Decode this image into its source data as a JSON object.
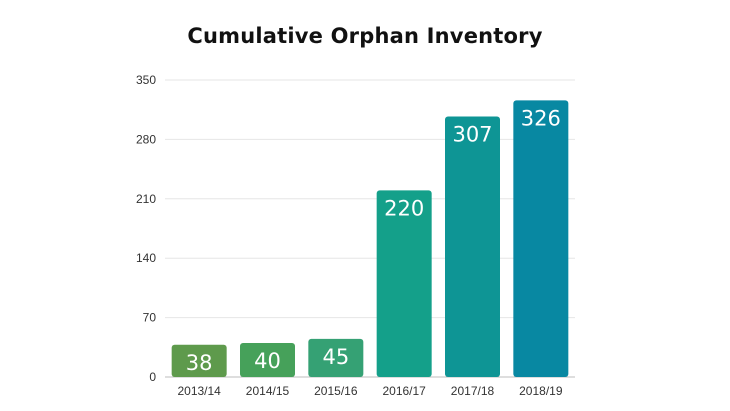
{
  "chart_data": {
    "type": "bar",
    "title": "Cumulative Orphan Inventory",
    "xlabel": "",
    "ylabel": "",
    "categories": [
      "2013/14",
      "2014/15",
      "2015/16",
      "2016/17",
      "2017/18",
      "2018/19"
    ],
    "values": [
      38,
      40,
      45,
      220,
      307,
      326
    ],
    "data_labels": [
      "38",
      "40",
      "45",
      "220",
      "307",
      "326"
    ],
    "ylim": [
      0,
      350
    ],
    "yticks": [
      0,
      70,
      140,
      210,
      280,
      350
    ],
    "ytick_labels": [
      "0",
      "70",
      "140",
      "210",
      "280",
      "350"
    ],
    "grid": true,
    "legend": "none",
    "bar_colors": [
      "#5e9a4c",
      "#46a15a",
      "#35a174",
      "#14a08a",
      "#0e9595",
      "#0888a2"
    ]
  }
}
